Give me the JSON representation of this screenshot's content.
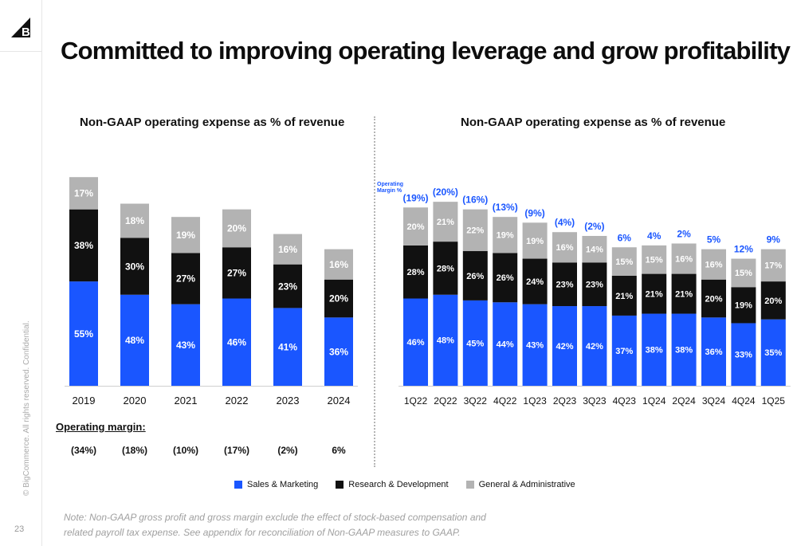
{
  "slide": {
    "title": "Committed to improving operating leverage and grow profitability",
    "side_text": "© BigCommerce. All rights reserved. Confidential.",
    "page_number": "23",
    "note_line1": "Note: Non-GAAP gross profit and gross margin exclude the effect of stock-based compensation and",
    "note_line2": "related payroll tax expense. See appendix for reconciliation of Non-GAAP measures to GAAP.",
    "logo_icon": "bigcommerce-logo-icon"
  },
  "colors": {
    "sales": "#1a56ff",
    "research": "#111111",
    "general": "#b3b3b3",
    "margin_text": "#1a56ff"
  },
  "legend": {
    "items": [
      "Sales & Marketing",
      "Research & Development",
      "General & Administrative"
    ]
  },
  "chart_data": [
    {
      "type": "bar",
      "stacked": true,
      "title": "Non-GAAP operating expense as % of revenue",
      "categories": [
        "2019",
        "2020",
        "2021",
        "2022",
        "2023",
        "2024"
      ],
      "series": [
        {
          "name": "Sales & Marketing",
          "values": [
            55,
            48,
            43,
            46,
            41,
            36
          ],
          "labels": [
            "55%",
            "48%",
            "43%",
            "46%",
            "41%",
            "36%"
          ]
        },
        {
          "name": "Research & Development",
          "values": [
            38,
            30,
            27,
            27,
            23,
            20
          ],
          "labels": [
            "38%",
            "30%",
            "27%",
            "27%",
            "23%",
            "20%"
          ]
        },
        {
          "name": "General & Administrative",
          "values": [
            17,
            18,
            19,
            20,
            16,
            16
          ],
          "labels": [
            "17%",
            "18%",
            "19%",
            "20%",
            "16%",
            "16%"
          ]
        }
      ],
      "operating_margin_label": "Operating margin:",
      "operating_margin": [
        "(34%)",
        "(18%)",
        "(10%)",
        "(17%)",
        "(2%)",
        "6%"
      ],
      "ylim": [
        0,
        110
      ],
      "grid": false,
      "legend_position": "bottom"
    },
    {
      "type": "bar",
      "stacked": true,
      "title": "Non-GAAP operating expense as % of revenue",
      "categories": [
        "1Q22",
        "2Q22",
        "3Q22",
        "4Q22",
        "1Q23",
        "2Q23",
        "3Q23",
        "4Q23",
        "1Q24",
        "2Q24",
        "3Q24",
        "4Q24",
        "1Q25"
      ],
      "series": [
        {
          "name": "Sales & Marketing",
          "values": [
            46,
            48,
            45,
            44,
            43,
            42,
            42,
            37,
            38,
            38,
            36,
            33,
            35
          ],
          "labels": [
            "46%",
            "48%",
            "45%",
            "44%",
            "43%",
            "42%",
            "42%",
            "37%",
            "38%",
            "38%",
            "36%",
            "33%",
            "35%"
          ]
        },
        {
          "name": "Research & Development",
          "values": [
            28,
            28,
            26,
            26,
            24,
            23,
            23,
            21,
            21,
            21,
            20,
            19,
            20
          ],
          "labels": [
            "28%",
            "28%",
            "26%",
            "26%",
            "24%",
            "23%",
            "23%",
            "21%",
            "21%",
            "21%",
            "20%",
            "19%",
            "20%"
          ]
        },
        {
          "name": "General & Administrative",
          "values": [
            20,
            21,
            22,
            19,
            19,
            16,
            14,
            15,
            15,
            16,
            16,
            15,
            17
          ],
          "labels": [
            "20%",
            "21%",
            "22%",
            "19%",
            "19%",
            "16%",
            "14%",
            "15%",
            "15%",
            "16%",
            "16%",
            "15%",
            "17%"
          ]
        }
      ],
      "operating_margin_label": "Operating Margin %",
      "operating_margin": [
        "(19%)",
        "(20%)",
        "(16%)",
        "(13%)",
        "(9%)",
        "(4%)",
        "(2%)",
        "6%",
        "4%",
        "2%",
        "5%",
        "12%",
        "9%"
      ],
      "ylim": [
        0,
        110
      ],
      "grid": false,
      "legend_position": "bottom"
    }
  ]
}
